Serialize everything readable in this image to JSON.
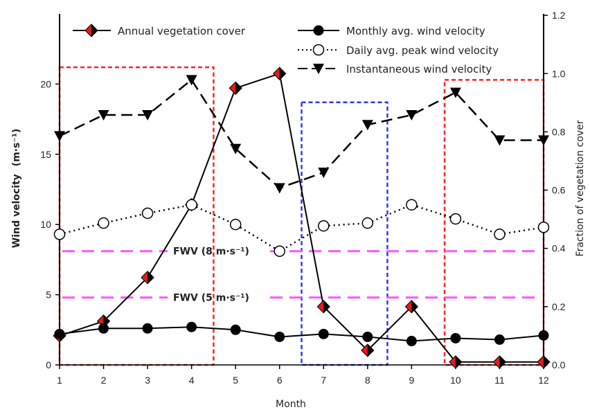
{
  "chart_data": {
    "type": "line",
    "xlabel": "Month",
    "ylabel": "Wind velocity",
    "ylabel_unit": "(m·s⁻¹)",
    "y2label": "Fraction of vegetation cover",
    "x": [
      1,
      2,
      3,
      4,
      5,
      6,
      7,
      8,
      9,
      10,
      11,
      12
    ],
    "xlim": [
      1,
      12
    ],
    "ylim": [
      0,
      20
    ],
    "y2lim": [
      0.0,
      1.2
    ],
    "yticks": [
      "0",
      "5",
      "10",
      "15",
      "20"
    ],
    "y2ticks": [
      "0.0",
      "0.2",
      "0.4",
      "0.6",
      "0.8",
      "1.0",
      "1.2"
    ],
    "series": [
      {
        "name": "Annual vegetation cover",
        "axis": "right",
        "marker": "diamond",
        "values": [
          0.1,
          0.15,
          0.3,
          0.55,
          0.95,
          1.0,
          0.2,
          0.05,
          0.2,
          0.01,
          0.01,
          0.01
        ]
      },
      {
        "name": "Monthly avg. wind velocity",
        "axis": "left",
        "marker": "circle-filled",
        "values": [
          2.2,
          2.6,
          2.6,
          2.7,
          2.5,
          2.0,
          2.2,
          2.0,
          1.7,
          1.9,
          1.8,
          2.1
        ]
      },
      {
        "name": "Daily avg. peak wind velocity",
        "axis": "left",
        "marker": "circle-open",
        "values": [
          9.3,
          10.1,
          10.8,
          11.4,
          10.0,
          8.1,
          9.9,
          10.1,
          11.4,
          10.4,
          9.3,
          9.8
        ]
      },
      {
        "name": "Instantaneous wind velocity",
        "axis": "left",
        "marker": "triangle-down",
        "values": [
          16.3,
          17.8,
          17.8,
          20.3,
          15.4,
          12.6,
          13.7,
          17.1,
          17.8,
          19.4,
          16.0,
          16.0
        ]
      }
    ],
    "reference_lines": [
      {
        "label": "FWV (8 m·s⁻¹)",
        "y": 8.1,
        "color": "#ff55ff"
      },
      {
        "label": "FWV (5 m·s⁻¹)",
        "y": 4.8,
        "color": "#ff55ff"
      }
    ],
    "highlight_boxes": [
      {
        "x0": 1.0,
        "x1": 4.5,
        "y0": 0,
        "y1": 21.2,
        "color": "#ff2222"
      },
      {
        "x0": 6.5,
        "x1": 8.45,
        "y0": 0,
        "y1": 18.7,
        "color": "#3333ff"
      },
      {
        "x0": 9.75,
        "x1": 12.0,
        "y0": 0,
        "y1": 20.3,
        "color": "#ff2222"
      }
    ],
    "legend_position": "top",
    "grid": false
  }
}
